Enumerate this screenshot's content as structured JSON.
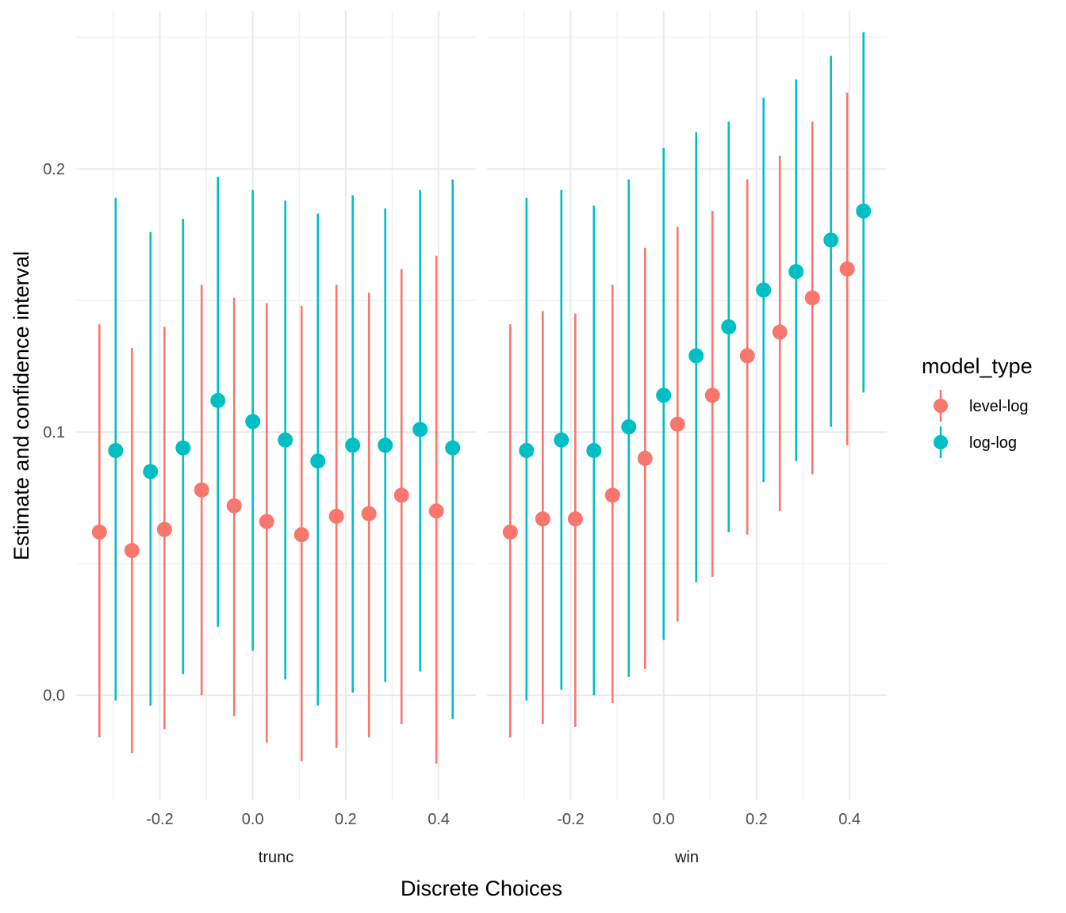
{
  "chart_data": {
    "type": "scatter",
    "title": "",
    "xlabel": "Discrete Choices",
    "ylabel": "Estimate and confidence interval",
    "xlim": [
      -0.38,
      0.48
    ],
    "ylim": [
      -0.04,
      0.26
    ],
    "x_ticks": [
      -0.2,
      0.0,
      0.2,
      0.4
    ],
    "x_tick_labels": [
      "-0.2",
      "0.0",
      "0.2",
      "0.4"
    ],
    "y_ticks": [
      0.0,
      0.1,
      0.2
    ],
    "y_tick_labels": [
      "0.0",
      "0.1",
      "0.2"
    ],
    "grid": true,
    "legend": {
      "title": "model_type",
      "position": "right",
      "entries": [
        {
          "name": "level-log",
          "color": "#F8766D"
        },
        {
          "name": "log-log",
          "color": "#00BFC4"
        }
      ]
    },
    "panels": [
      {
        "label": "trunc",
        "series": [
          {
            "name": "level-log",
            "color": "#F8766D",
            "x": [
              -0.33,
              -0.26,
              -0.19,
              -0.11,
              -0.04,
              0.03,
              0.105,
              0.18,
              0.25,
              0.32,
              0.395
            ],
            "estimate": [
              0.062,
              0.055,
              0.063,
              0.078,
              0.072,
              0.066,
              0.061,
              0.068,
              0.069,
              0.076,
              0.07
            ],
            "lower": [
              -0.016,
              -0.022,
              -0.013,
              0.0,
              -0.008,
              -0.018,
              -0.025,
              -0.02,
              -0.016,
              -0.011,
              -0.026
            ],
            "upper": [
              0.141,
              0.132,
              0.14,
              0.156,
              0.151,
              0.149,
              0.148,
              0.156,
              0.153,
              0.162,
              0.167
            ]
          },
          {
            "name": "log-log",
            "color": "#00BFC4",
            "x": [
              -0.295,
              -0.22,
              -0.15,
              -0.075,
              0.0,
              0.07,
              0.14,
              0.215,
              0.285,
              0.36,
              0.43
            ],
            "estimate": [
              0.093,
              0.085,
              0.094,
              0.112,
              0.104,
              0.097,
              0.089,
              0.095,
              0.095,
              0.101,
              0.094
            ],
            "lower": [
              -0.002,
              -0.004,
              0.008,
              0.026,
              0.017,
              0.006,
              -0.004,
              0.001,
              0.005,
              0.009,
              -0.009
            ],
            "upper": [
              0.189,
              0.176,
              0.181,
              0.197,
              0.192,
              0.188,
              0.183,
              0.19,
              0.185,
              0.192,
              0.196
            ]
          }
        ]
      },
      {
        "label": "win",
        "series": [
          {
            "name": "level-log",
            "color": "#F8766D",
            "x": [
              -0.33,
              -0.26,
              -0.19,
              -0.11,
              -0.04,
              0.03,
              0.105,
              0.18,
              0.25,
              0.32,
              0.395
            ],
            "estimate": [
              0.062,
              0.067,
              0.067,
              0.076,
              0.09,
              0.103,
              0.114,
              0.129,
              0.138,
              0.151,
              0.162
            ],
            "lower": [
              -0.016,
              -0.011,
              -0.012,
              -0.003,
              0.01,
              0.028,
              0.045,
              0.061,
              0.07,
              0.084,
              0.095
            ],
            "upper": [
              0.141,
              0.146,
              0.145,
              0.156,
              0.17,
              0.178,
              0.184,
              0.196,
              0.205,
              0.218,
              0.229
            ]
          },
          {
            "name": "log-log",
            "color": "#00BFC4",
            "x": [
              -0.295,
              -0.22,
              -0.15,
              -0.075,
              0.0,
              0.07,
              0.14,
              0.215,
              0.285,
              0.36,
              0.43
            ],
            "estimate": [
              0.093,
              0.097,
              0.093,
              0.102,
              0.114,
              0.129,
              0.14,
              0.154,
              0.161,
              0.173,
              0.184
            ],
            "lower": [
              -0.002,
              0.002,
              0.0,
              0.007,
              0.021,
              0.043,
              0.062,
              0.081,
              0.089,
              0.102,
              0.115
            ],
            "upper": [
              0.189,
              0.192,
              0.186,
              0.196,
              0.208,
              0.214,
              0.218,
              0.227,
              0.234,
              0.243,
              0.252
            ]
          }
        ]
      }
    ]
  }
}
